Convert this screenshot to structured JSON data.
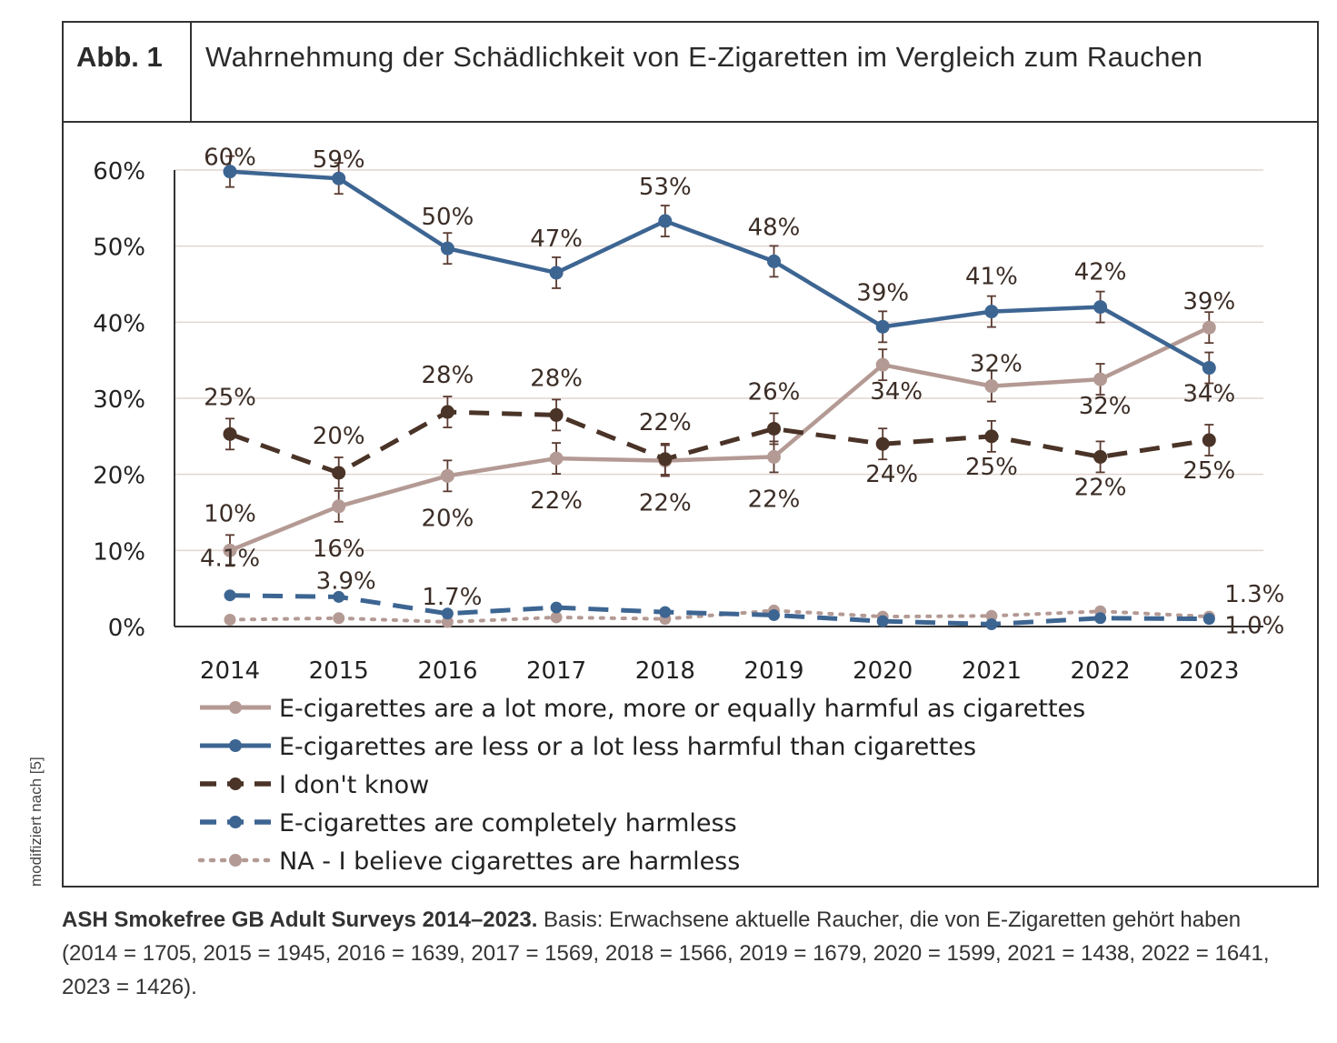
{
  "figure": {
    "label": "Abb. 1",
    "title": "Wahrnehmung der Schädlichkeit von E-Zigaretten im Vergleich zum Rauchen"
  },
  "side_note": "modifiziert nach [5]",
  "caption": {
    "bold": "ASH Smokefree GB Adult Surveys 2014–2023.",
    "text": "Basis: Erwachsene aktuelle Raucher, die von E-Zigaretten gehört haben (2014 = 1705, 2015 = 1945, 2016 = 1639, 2017 = 1569, 2018 = 1566, 2019 = 1679, 2020 = 1599, 2021 = 1438, 2022 = 1641, 2023 = 1426)."
  },
  "chart_data": {
    "type": "line",
    "title": "",
    "xlabel": "",
    "ylabel": "",
    "ylim": [
      0,
      60
    ],
    "yticks": [
      "0%",
      "10%",
      "20%",
      "30%",
      "40%",
      "50%",
      "60%"
    ],
    "x": [
      "2014",
      "2015",
      "2016",
      "2017",
      "2018",
      "2019",
      "2020",
      "2021",
      "2022",
      "2023"
    ],
    "grid": true,
    "legend_position": "bottom",
    "error_bars": true,
    "series": [
      {
        "name": "E-cigarettes are a lot more, more or equally harmful as cigarettes",
        "color": "#b49a94",
        "style": "solid",
        "values": [
          10,
          15.8,
          19.8,
          22.1,
          21.8,
          22.3,
          34.4,
          31.6,
          32.5,
          39.3
        ],
        "labels": [
          "10%",
          "16%",
          "20%",
          "22%",
          "22%",
          "22%",
          "34%",
          "32%",
          "32%",
          "39%"
        ]
      },
      {
        "name": "E-cigarettes are less or a lot less harmful than cigarettes",
        "color": "#3d6592",
        "style": "solid",
        "values": [
          59.8,
          58.9,
          49.7,
          46.5,
          53.3,
          48.0,
          39.4,
          41.4,
          42.0,
          34.0
        ],
        "labels": [
          "60%",
          "59%",
          "50%",
          "47%",
          "53%",
          "48%",
          "39%",
          "41%",
          "42%",
          "34%"
        ]
      },
      {
        "name": "I don't know",
        "color": "#4a3327",
        "style": "dashed",
        "values": [
          25.3,
          20.2,
          28.2,
          27.8,
          22.0,
          26.0,
          24.0,
          25.0,
          22.3,
          24.5
        ],
        "labels": [
          "25%",
          "20%",
          "28%",
          "28%",
          "22%",
          "26%",
          "24%",
          "25%",
          "22%",
          "25%"
        ]
      },
      {
        "name": "E-cigarettes are completely harmless",
        "color": "#3d6592",
        "style": "dashed",
        "values": [
          4.1,
          3.9,
          1.7,
          2.5,
          1.9,
          1.5,
          0.7,
          0.3,
          1.1,
          1.0
        ],
        "labels": [
          "4.1%",
          "3.9%",
          "1.7%",
          "",
          "",
          "",
          "",
          "",
          "",
          "1.0%"
        ]
      },
      {
        "name": "NA - I believe cigarettes are harmless",
        "color": "#b49a94",
        "style": "dotted",
        "values": [
          0.9,
          1.1,
          0.6,
          1.2,
          1.0,
          2.1,
          1.3,
          1.4,
          2.0,
          1.3
        ],
        "labels": [
          "",
          "",
          "",
          "",
          "",
          "",
          "",
          "",
          "",
          "1.3%"
        ]
      }
    ]
  }
}
